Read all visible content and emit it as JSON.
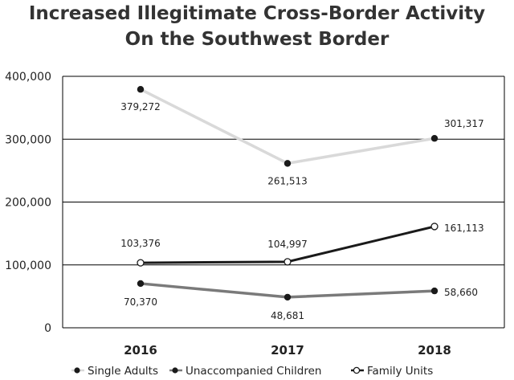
{
  "chart_data": {
    "type": "line",
    "title_lines": [
      "Increased Illegitimate Cross-Border Activity",
      "On the Southwest Border"
    ],
    "categories": [
      "2016",
      "2017",
      "2018"
    ],
    "y_ticks": [
      0,
      100000,
      200000,
      300000,
      400000
    ],
    "y_tick_labels": [
      "0",
      "100,000",
      "200,000",
      "300,000",
      "400,000"
    ],
    "ylim": [
      0,
      400000
    ],
    "grid": true,
    "legend_position": "bottom",
    "series": [
      {
        "name": "Single Adults",
        "values": [
          379272,
          261513,
          301317
        ],
        "labels": [
          "379,272",
          "261,513",
          "301,317"
        ],
        "line_color": "#d9d9d9",
        "marker": "filled",
        "marker_color": "#1a1a1a"
      },
      {
        "name": "Unaccompanied Children",
        "values": [
          70370,
          48681,
          58660
        ],
        "labels": [
          "70,370",
          "48,681",
          "58,660"
        ],
        "line_color": "#7a7a7a",
        "marker": "filled",
        "marker_color": "#1a1a1a"
      },
      {
        "name": "Family Units",
        "values": [
          103376,
          104997,
          161113
        ],
        "labels": [
          "103,376",
          "104,997",
          "161,113"
        ],
        "line_color": "#1a1a1a",
        "marker": "hollow",
        "marker_color": "#1a1a1a"
      }
    ]
  }
}
